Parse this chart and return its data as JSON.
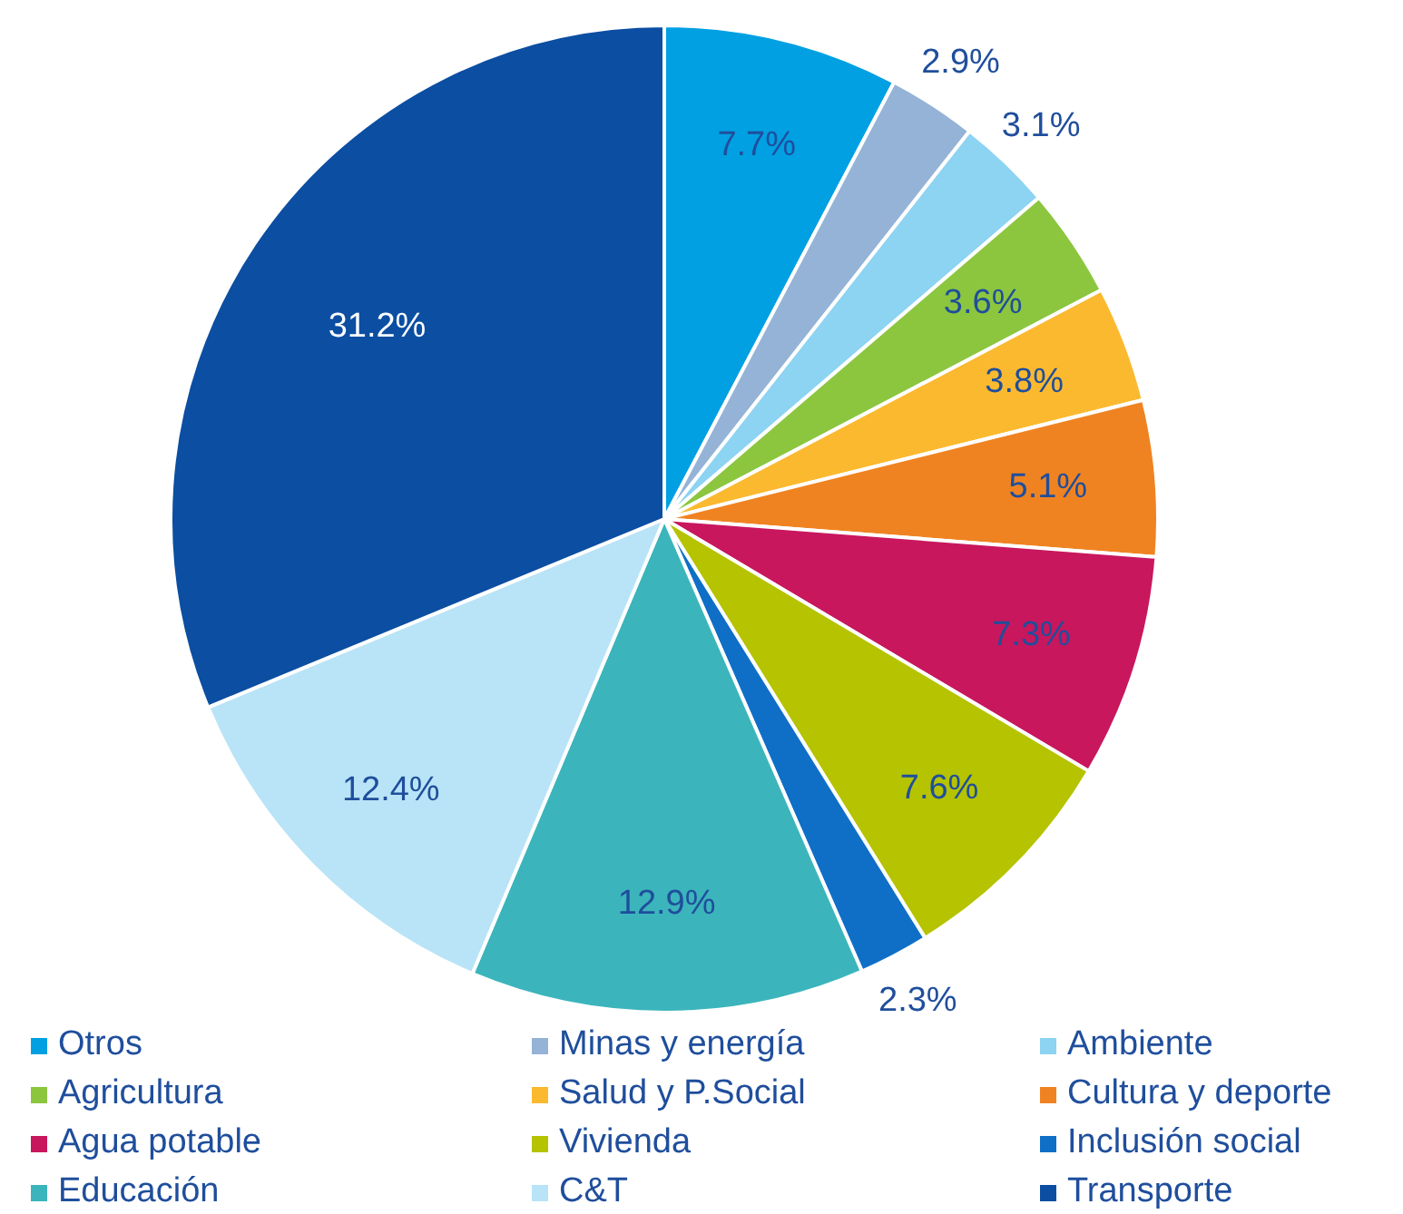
{
  "chart_data": {
    "type": "pie",
    "legend": "bottom",
    "categories": [
      "Otros",
      "Minas y energía",
      "Ambiente",
      "Agricultura",
      "Salud y P.Social",
      "Cultura y deporte",
      "Agua potable",
      "Vivienda",
      "Inclusión social",
      "Educación",
      "C&T",
      "Transporte"
    ],
    "values": [
      7.7,
      2.9,
      3.1,
      3.6,
      3.8,
      5.1,
      7.3,
      7.6,
      2.3,
      12.9,
      12.4,
      31.2
    ],
    "value_labels": [
      "7.7%",
      "2.9%",
      "3.1%",
      "3.6%",
      "3.8%",
      "5.1%",
      "7.3%",
      "7.6%",
      "2.3%",
      "12.9%",
      "12.4%",
      "31.2%"
    ],
    "colors": [
      "#00a0e3",
      "#95b3d7",
      "#8dd3f2",
      "#8cc63f",
      "#fbb92f",
      "#f08321",
      "#c8175d",
      "#b5c300",
      "#0f6fc6",
      "#3bb5bb",
      "#b9e4f7",
      "#0b4ea2"
    ]
  }
}
